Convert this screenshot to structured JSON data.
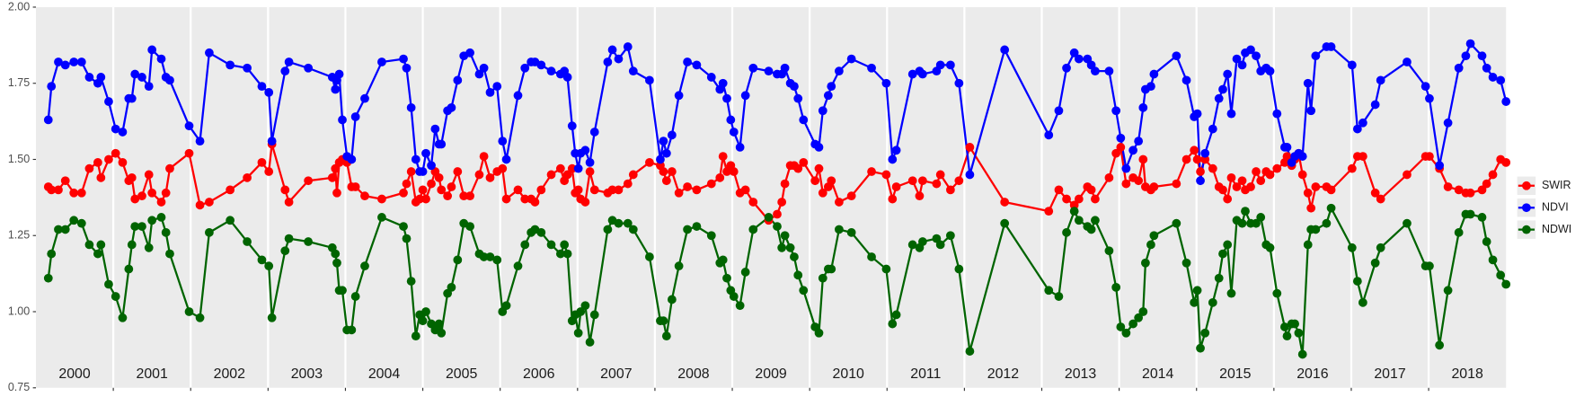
{
  "chart_data": {
    "type": "line",
    "x": [
      2000.16,
      2000.2,
      2000.29,
      2000.38,
      2000.49,
      2000.59,
      2000.69,
      2000.8,
      2000.84,
      2000.94,
      2001.03,
      2001.12,
      2001.2,
      2001.24,
      2001.28,
      2001.37,
      2001.46,
      2001.5,
      2001.62,
      2001.68,
      2001.73,
      2001.98,
      2002.12,
      2002.24,
      2002.51,
      2002.73,
      2002.92,
      2003.01,
      2003.05,
      2003.22,
      2003.27,
      2003.52,
      2003.83,
      2003.87,
      2003.89,
      2003.92,
      2003.96,
      2004.02,
      2004.08,
      2004.13,
      2004.25,
      2004.47,
      2004.75,
      2004.79,
      2004.85,
      2004.91,
      2004.96,
      2005.0,
      2005.04,
      2005.11,
      2005.16,
      2005.21,
      2005.24,
      2005.32,
      2005.37,
      2005.45,
      2005.53,
      2005.61,
      2005.73,
      2005.79,
      2005.87,
      2005.96,
      2006.03,
      2006.08,
      2006.23,
      2006.32,
      2006.4,
      2006.45,
      2006.53,
      2006.66,
      2006.78,
      2006.83,
      2006.87,
      2006.93,
      2006.97,
      2007.01,
      2007.04,
      2007.1,
      2007.16,
      2007.22,
      2007.39,
      2007.45,
      2007.53,
      2007.65,
      2007.72,
      2007.93,
      2008.07,
      2008.11,
      2008.15,
      2008.22,
      2008.31,
      2008.42,
      2008.54,
      2008.73,
      2008.84,
      2008.88,
      2008.93,
      2008.98,
      2009.02,
      2009.1,
      2009.17,
      2009.27,
      2009.47,
      2009.58,
      2009.64,
      2009.68,
      2009.75,
      2009.8,
      2009.85,
      2009.92,
      2010.07,
      2010.12,
      2010.17,
      2010.24,
      2010.28,
      2010.38,
      2010.54,
      2010.8,
      2010.99,
      2011.07,
      2011.12,
      2011.33,
      2011.42,
      2011.46,
      2011.64,
      2011.69,
      2011.82,
      2011.93,
      2012.07,
      2012.52,
      2013.09,
      2013.22,
      2013.32,
      2013.42,
      2013.48,
      2013.59,
      2013.64,
      2013.69,
      2013.87,
      2013.96,
      2014.02,
      2014.09,
      2014.18,
      2014.25,
      2014.31,
      2014.34,
      2014.41,
      2014.45,
      2014.74,
      2014.87,
      2014.97,
      2015.01,
      2015.05,
      2015.11,
      2015.21,
      2015.29,
      2015.34,
      2015.4,
      2015.45,
      2015.52,
      2015.59,
      2015.63,
      2015.7,
      2015.77,
      2015.83,
      2015.9,
      2015.95,
      2016.04,
      2016.14,
      2016.17,
      2016.23,
      2016.27,
      2016.32,
      2016.37,
      2016.44,
      2016.48,
      2016.54,
      2016.68,
      2016.74,
      2017.01,
      2017.08,
      2017.15,
      2017.31,
      2017.38,
      2017.72,
      2017.96,
      2018.01,
      2018.14,
      2018.25,
      2018.39,
      2018.48,
      2018.54,
      2018.69,
      2018.75,
      2018.83,
      2018.93,
      2019.0
    ],
    "series": [
      {
        "name": "SWIR",
        "color": "#ff0000",
        "values": [
          1.41,
          1.4,
          1.4,
          1.43,
          1.39,
          1.39,
          1.47,
          1.49,
          1.44,
          1.5,
          1.52,
          1.49,
          1.43,
          1.44,
          1.37,
          1.38,
          1.45,
          1.39,
          1.36,
          1.39,
          1.47,
          1.52,
          1.35,
          1.36,
          1.4,
          1.44,
          1.49,
          1.46,
          1.55,
          1.4,
          1.36,
          1.43,
          1.44,
          1.47,
          1.39,
          1.49,
          1.5,
          1.49,
          1.41,
          1.41,
          1.38,
          1.37,
          1.39,
          1.42,
          1.46,
          1.36,
          1.37,
          1.4,
          1.37,
          1.42,
          1.46,
          1.44,
          1.4,
          1.38,
          1.41,
          1.46,
          1.38,
          1.38,
          1.45,
          1.51,
          1.44,
          1.46,
          1.47,
          1.37,
          1.4,
          1.37,
          1.37,
          1.36,
          1.4,
          1.45,
          1.47,
          1.43,
          1.45,
          1.47,
          1.39,
          1.4,
          1.37,
          1.36,
          1.46,
          1.4,
          1.39,
          1.4,
          1.4,
          1.42,
          1.45,
          1.49,
          1.48,
          1.46,
          1.43,
          1.46,
          1.39,
          1.41,
          1.4,
          1.42,
          1.44,
          1.51,
          1.46,
          1.48,
          1.46,
          1.39,
          1.4,
          1.36,
          1.3,
          1.32,
          1.36,
          1.42,
          1.48,
          1.48,
          1.47,
          1.49,
          1.43,
          1.47,
          1.39,
          1.41,
          1.43,
          1.36,
          1.38,
          1.46,
          1.45,
          1.37,
          1.41,
          1.43,
          1.38,
          1.43,
          1.42,
          1.45,
          1.4,
          1.43,
          1.54,
          1.36,
          1.33,
          1.4,
          1.37,
          1.35,
          1.37,
          1.41,
          1.4,
          1.37,
          1.44,
          1.52,
          1.54,
          1.42,
          1.44,
          1.43,
          1.5,
          1.41,
          1.4,
          1.41,
          1.42,
          1.5,
          1.53,
          1.5,
          1.46,
          1.5,
          1.47,
          1.41,
          1.4,
          1.37,
          1.44,
          1.41,
          1.43,
          1.4,
          1.41,
          1.46,
          1.43,
          1.46,
          1.45,
          1.47,
          1.49,
          1.51,
          1.48,
          1.5,
          1.52,
          1.45,
          1.39,
          1.34,
          1.41,
          1.41,
          1.4,
          1.47,
          1.51,
          1.51,
          1.39,
          1.37,
          1.45,
          1.51,
          1.51,
          1.47,
          1.41,
          1.4,
          1.39,
          1.39,
          1.4,
          1.42,
          1.45,
          1.5,
          1.49
        ]
      },
      {
        "name": "NDVI",
        "color": "#0000ff",
        "values": [
          1.63,
          1.74,
          1.82,
          1.81,
          1.82,
          1.82,
          1.77,
          1.75,
          1.77,
          1.69,
          1.6,
          1.59,
          1.7,
          1.7,
          1.78,
          1.77,
          1.74,
          1.86,
          1.83,
          1.77,
          1.76,
          1.61,
          1.56,
          1.85,
          1.81,
          1.8,
          1.74,
          1.72,
          1.56,
          1.79,
          1.82,
          1.8,
          1.77,
          1.73,
          1.76,
          1.78,
          1.63,
          1.51,
          1.5,
          1.64,
          1.7,
          1.82,
          1.83,
          1.8,
          1.67,
          1.5,
          1.46,
          1.46,
          1.52,
          1.48,
          1.6,
          1.55,
          1.55,
          1.66,
          1.67,
          1.76,
          1.84,
          1.85,
          1.78,
          1.8,
          1.72,
          1.74,
          1.56,
          1.5,
          1.71,
          1.8,
          1.82,
          1.82,
          1.81,
          1.79,
          1.78,
          1.79,
          1.77,
          1.61,
          1.52,
          1.47,
          1.52,
          1.53,
          1.49,
          1.59,
          1.82,
          1.86,
          1.83,
          1.87,
          1.79,
          1.76,
          1.5,
          1.56,
          1.52,
          1.58,
          1.71,
          1.82,
          1.81,
          1.77,
          1.73,
          1.75,
          1.7,
          1.63,
          1.59,
          1.54,
          1.71,
          1.8,
          1.79,
          1.78,
          1.78,
          1.8,
          1.75,
          1.74,
          1.7,
          1.63,
          1.55,
          1.54,
          1.66,
          1.71,
          1.74,
          1.79,
          1.83,
          1.8,
          1.75,
          1.5,
          1.53,
          1.78,
          1.79,
          1.78,
          1.79,
          1.81,
          1.81,
          1.75,
          1.45,
          1.86,
          1.58,
          1.66,
          1.8,
          1.85,
          1.83,
          1.83,
          1.81,
          1.79,
          1.79,
          1.66,
          1.57,
          1.47,
          1.53,
          1.56,
          1.67,
          1.73,
          1.74,
          1.78,
          1.84,
          1.76,
          1.64,
          1.65,
          1.43,
          1.52,
          1.6,
          1.7,
          1.73,
          1.78,
          1.65,
          1.83,
          1.81,
          1.85,
          1.86,
          1.84,
          1.79,
          1.8,
          1.79,
          1.65,
          1.54,
          1.54,
          1.49,
          1.51,
          1.52,
          1.51,
          1.75,
          1.66,
          1.84,
          1.87,
          1.87,
          1.81,
          1.6,
          1.62,
          1.68,
          1.76,
          1.82,
          1.74,
          1.7,
          1.48,
          1.62,
          1.8,
          1.84,
          1.88,
          1.84,
          1.8,
          1.77,
          1.76,
          1.69
        ]
      },
      {
        "name": "NDWI",
        "color": "#006400",
        "values": [
          1.11,
          1.19,
          1.27,
          1.27,
          1.3,
          1.29,
          1.22,
          1.19,
          1.22,
          1.09,
          1.05,
          0.98,
          1.14,
          1.22,
          1.28,
          1.28,
          1.21,
          1.3,
          1.31,
          1.26,
          1.19,
          1.0,
          0.98,
          1.26,
          1.3,
          1.23,
          1.17,
          1.15,
          0.98,
          1.2,
          1.24,
          1.23,
          1.21,
          1.19,
          1.16,
          1.07,
          1.07,
          0.94,
          0.94,
          1.05,
          1.15,
          1.31,
          1.28,
          1.24,
          1.1,
          0.92,
          0.99,
          0.97,
          1.0,
          0.96,
          0.94,
          0.96,
          0.93,
          1.06,
          1.08,
          1.17,
          1.29,
          1.28,
          1.19,
          1.18,
          1.18,
          1.17,
          1.0,
          1.02,
          1.15,
          1.22,
          1.26,
          1.27,
          1.26,
          1.22,
          1.19,
          1.22,
          1.19,
          0.97,
          0.99,
          0.93,
          1.0,
          1.02,
          0.9,
          0.99,
          1.27,
          1.3,
          1.29,
          1.29,
          1.27,
          1.18,
          0.97,
          0.97,
          0.92,
          1.04,
          1.15,
          1.27,
          1.28,
          1.25,
          1.16,
          1.17,
          1.11,
          1.07,
          1.05,
          1.02,
          1.13,
          1.27,
          1.31,
          1.28,
          1.21,
          1.25,
          1.21,
          1.18,
          1.12,
          1.07,
          0.95,
          0.93,
          1.11,
          1.14,
          1.14,
          1.27,
          1.26,
          1.18,
          1.14,
          0.96,
          0.99,
          1.22,
          1.21,
          1.23,
          1.24,
          1.22,
          1.25,
          1.14,
          0.87,
          1.29,
          1.07,
          1.05,
          1.26,
          1.33,
          1.3,
          1.28,
          1.27,
          1.3,
          1.2,
          1.08,
          0.95,
          0.93,
          0.96,
          0.98,
          1.0,
          1.16,
          1.22,
          1.25,
          1.29,
          1.16,
          1.03,
          1.07,
          0.88,
          0.93,
          1.03,
          1.11,
          1.19,
          1.22,
          1.06,
          1.3,
          1.29,
          1.33,
          1.29,
          1.29,
          1.31,
          1.22,
          1.21,
          1.06,
          0.95,
          0.92,
          0.96,
          0.96,
          0.93,
          0.86,
          1.22,
          1.27,
          1.27,
          1.29,
          1.34,
          1.21,
          1.1,
          1.03,
          1.16,
          1.21,
          1.29,
          1.15,
          1.15,
          0.89,
          1.07,
          1.26,
          1.32,
          1.32,
          1.31,
          1.23,
          1.17,
          1.12,
          1.09
        ]
      }
    ],
    "year_labels": [
      "2000",
      "2001",
      "2002",
      "2003",
      "2004",
      "2005",
      "2006",
      "2007",
      "2008",
      "2009",
      "2010",
      "2011",
      "2012",
      "2013",
      "2014",
      "2015",
      "2016",
      "2017",
      "2018"
    ],
    "xlim": [
      2000,
      2019
    ],
    "xticks": [
      2001,
      2002,
      2003,
      2004,
      2005,
      2006,
      2007,
      2008,
      2009,
      2010,
      2011,
      2012,
      2013,
      2014,
      2015,
      2016,
      2017,
      2018
    ],
    "ylim": [
      0.75,
      2.0
    ],
    "yticks": [
      0.75,
      {
        "value": 1.0,
        "label": "1.00"
      },
      1.25,
      {
        "value": 1.5,
        "label": "1.50"
      },
      1.75,
      {
        "value": 2.0,
        "label": "2.00"
      }
    ],
    "grid": true,
    "legend": "right"
  }
}
